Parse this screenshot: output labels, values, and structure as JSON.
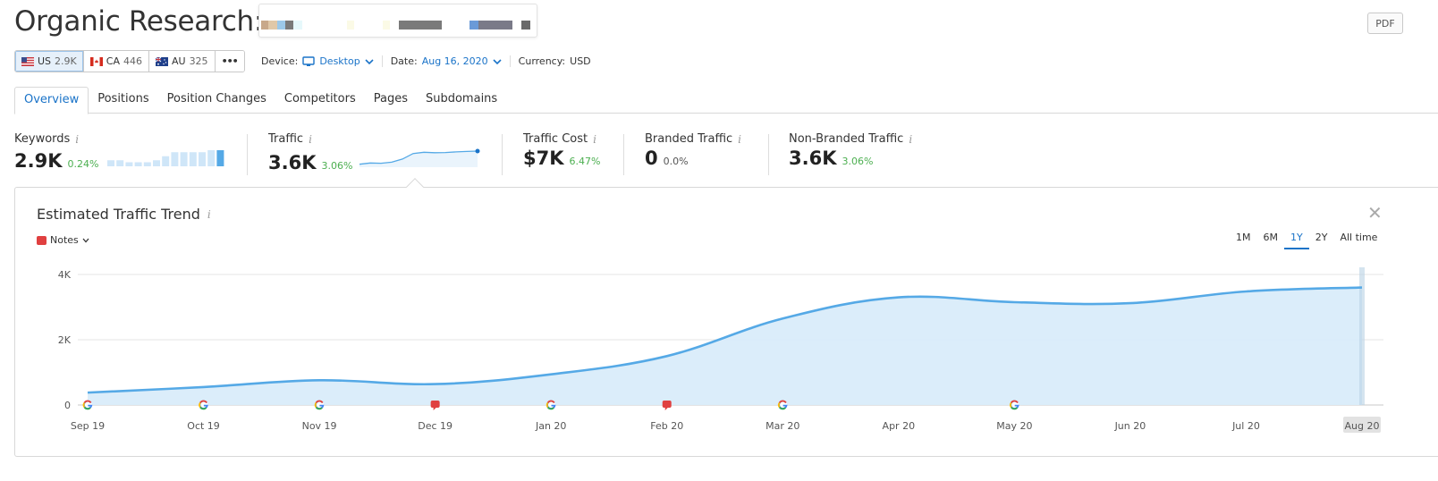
{
  "header": {
    "title": "Organic Research:",
    "pdf_label": "PDF"
  },
  "databases": [
    {
      "code": "US",
      "count": "2.9K"
    },
    {
      "code": "CA",
      "count": "446"
    },
    {
      "code": "AU",
      "count": "325"
    }
  ],
  "more_label": "•••",
  "filters": {
    "device_label": "Device:",
    "device_value": "Desktop",
    "date_label": "Date:",
    "date_value": "Aug 16, 2020",
    "currency_label": "Currency:",
    "currency_value": "USD"
  },
  "tabs": [
    "Overview",
    "Positions",
    "Position Changes",
    "Competitors",
    "Pages",
    "Subdomains"
  ],
  "metrics": {
    "keywords": {
      "label": "Keywords",
      "value": "2.9K",
      "change": "0.24%"
    },
    "traffic": {
      "label": "Traffic",
      "value": "3.6K",
      "change": "3.06%"
    },
    "traffic_cost": {
      "label": "Traffic Cost",
      "value": "$7K",
      "change": "6.47%"
    },
    "branded": {
      "label": "Branded Traffic",
      "value": "0",
      "change": "0.0%"
    },
    "non_branded": {
      "label": "Non-Branded Traffic",
      "value": "3.6K",
      "change": "3.06%"
    }
  },
  "panel": {
    "title": "Estimated Traffic Trend",
    "notes_label": "Notes",
    "periods": [
      "1M",
      "6M",
      "1Y",
      "2Y",
      "All time"
    ],
    "active_period": "1Y"
  },
  "colors": {
    "accent": "#1a73c8",
    "line": "#55a9e6",
    "area": "#d9ecfa",
    "positive": "#4caf50"
  },
  "keywords_spark": [
    3,
    3,
    2,
    2,
    2,
    3,
    5,
    7,
    7,
    7,
    7,
    8,
    8
  ],
  "traffic_spark": [
    0.3,
    0.6,
    0.55,
    0.8,
    1.6,
    3.0,
    3.3,
    3.2,
    3.25,
    3.4,
    3.5,
    3.6
  ],
  "chart_data": {
    "type": "area",
    "categories": [
      "Sep 19",
      "Oct 19",
      "Nov 19",
      "Dec 19",
      "Jan 20",
      "Feb 20",
      "Mar 20",
      "Apr 20",
      "May 20",
      "Jun 20",
      "Jul 20",
      "Aug 20"
    ],
    "series": [
      {
        "values": [
          380,
          550,
          760,
          640,
          940,
          1500,
          2650,
          3300,
          3150,
          3120,
          3480,
          3600
        ]
      }
    ],
    "yticks": [
      "0",
      "2K",
      "4K"
    ],
    "ylim": [
      0,
      4000
    ],
    "grid": true,
    "markers": [
      {
        "category": "Sep 19",
        "kind": "google"
      },
      {
        "category": "Oct 19",
        "kind": "google"
      },
      {
        "category": "Nov 19",
        "kind": "google"
      },
      {
        "category": "Dec 19",
        "kind": "note"
      },
      {
        "category": "Jan 20",
        "kind": "google"
      },
      {
        "category": "Feb 20",
        "kind": "note"
      },
      {
        "category": "Mar 20",
        "kind": "google"
      },
      {
        "category": "May 20",
        "kind": "google"
      }
    ],
    "highlight_category": "Aug 20"
  }
}
